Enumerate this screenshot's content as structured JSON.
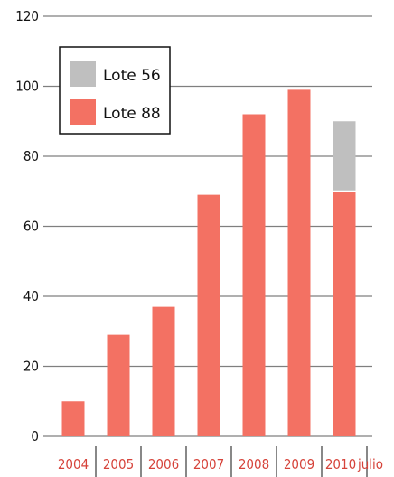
{
  "colors": {
    "lote88": "#f37163",
    "lote56": "#bfbfbf",
    "grid": "#7f7f7f",
    "axis_label": "#111111",
    "category_label": "#d6433a"
  },
  "legend": {
    "items": [
      {
        "label": "Lote 56",
        "color_key": "lote56"
      },
      {
        "label": "Lote 88",
        "color_key": "lote88"
      }
    ]
  },
  "chart_data": {
    "type": "bar",
    "stacked": true,
    "title": "",
    "xlabel": "",
    "ylabel": "",
    "ylim": [
      0,
      120
    ],
    "yticks": [
      0,
      20,
      40,
      60,
      80,
      100,
      120
    ],
    "grid": true,
    "legend_position": "top-left",
    "categories": [
      "2004",
      "2005",
      "2006",
      "2007",
      "2008",
      "2009",
      "2010"
    ],
    "category_note": "julio",
    "series": [
      {
        "name": "Lote 88",
        "values": [
          10,
          29,
          37,
          69,
          92,
          99,
          70
        ]
      },
      {
        "name": "Lote 56",
        "values": [
          0,
          0,
          0,
          0,
          0,
          0,
          20
        ]
      }
    ]
  }
}
